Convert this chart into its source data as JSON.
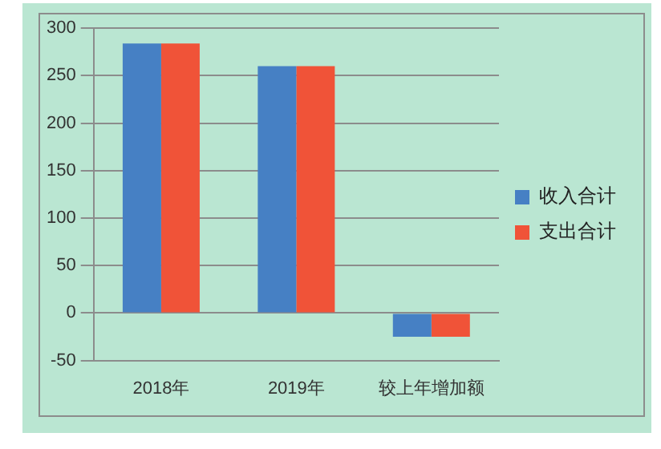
{
  "chart_data": {
    "type": "bar",
    "categories": [
      "2018年",
      "2019年",
      "较上年增加额"
    ],
    "series": [
      {
        "name": "收入合计",
        "color": "#4680c4",
        "values": [
          284,
          260,
          -25
        ]
      },
      {
        "name": "支出合计",
        "color": "#f05338",
        "values": [
          284,
          260,
          -25
        ]
      }
    ],
    "ylim": [
      -50,
      300
    ],
    "yticks": [
      -50,
      0,
      50,
      100,
      150,
      200,
      250,
      300
    ],
    "grid": "y",
    "legend": "right"
  }
}
